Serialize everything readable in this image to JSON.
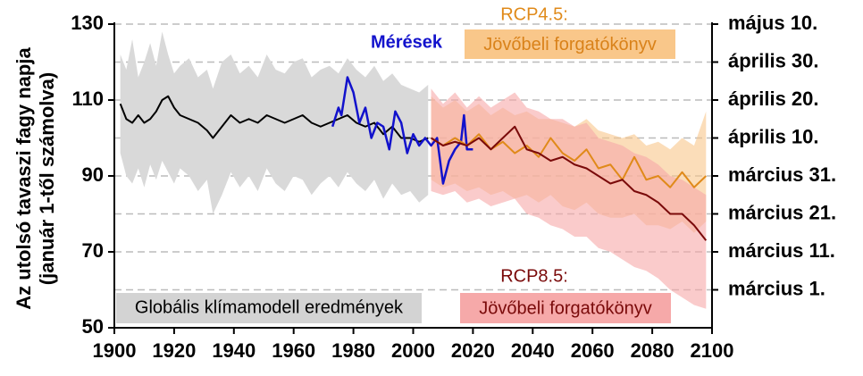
{
  "chart_data": {
    "type": "line",
    "ylabel": [
      "Az utolsó tavaszi fagy napja",
      "(január 1-től számolva)"
    ],
    "xlim": [
      1900,
      2100
    ],
    "xticks": [
      1900,
      1920,
      1940,
      1960,
      1980,
      2000,
      2020,
      2040,
      2060,
      2080,
      2100
    ],
    "ylim": [
      50,
      130
    ],
    "yticks": [
      50,
      70,
      90,
      110,
      130
    ],
    "y2lim": [
      50,
      130
    ],
    "y2ticks": [
      {
        "value": 130,
        "label": "május 10."
      },
      {
        "value": 120,
        "label": "április 30."
      },
      {
        "value": 110,
        "label": "április 20."
      },
      {
        "value": 100,
        "label": "április 10."
      },
      {
        "value": 90,
        "label": "március 31."
      },
      {
        "value": 80,
        "label": "március 21."
      },
      {
        "value": 70,
        "label": "március 11."
      },
      {
        "value": 60,
        "label": "március 1."
      }
    ],
    "grid": true,
    "series": [
      {
        "name": "Globális klímamodell eredmények",
        "color": "#000000",
        "band_color": "#d9d9d9",
        "x": [
          1902,
          1904,
          1906,
          1908,
          1910,
          1912,
          1914,
          1916,
          1918,
          1920,
          1922,
          1925,
          1928,
          1931,
          1933,
          1936,
          1939,
          1942,
          1945,
          1948,
          1951,
          1954,
          1957,
          1960,
          1963,
          1966,
          1969,
          1972,
          1975,
          1978,
          1981,
          1984,
          1987,
          1990,
          1993,
          1996,
          1999,
          2002,
          2005
        ],
        "values": [
          109,
          105,
          104,
          106,
          104,
          105,
          107,
          110,
          111,
          108,
          106,
          105,
          104,
          102,
          100,
          103,
          106,
          104,
          105,
          104,
          106,
          105,
          104,
          105,
          106,
          104,
          103,
          104,
          105,
          106,
          104,
          103,
          104,
          101,
          103,
          100,
          100,
          99,
          100
        ],
        "upper": [
          122,
          118,
          126,
          116,
          120,
          125,
          119,
          128,
          122,
          117,
          119,
          121,
          116,
          118,
          113,
          120,
          122,
          117,
          119,
          116,
          122,
          118,
          117,
          120,
          121,
          116,
          118,
          119,
          117,
          121,
          118,
          116,
          119,
          115,
          117,
          114,
          113,
          112,
          114
        ],
        "lower": [
          96,
          90,
          88,
          92,
          87,
          93,
          89,
          94,
          91,
          88,
          92,
          90,
          86,
          89,
          80,
          85,
          91,
          87,
          90,
          86,
          92,
          88,
          86,
          90,
          89,
          85,
          88,
          90,
          87,
          91,
          88,
          86,
          89,
          84,
          88,
          85,
          86,
          83,
          85
        ]
      },
      {
        "name": "Mérések",
        "color": "#1212cc",
        "x": [
          1973,
          1975,
          1976,
          1978,
          1980,
          1982,
          1984,
          1986,
          1988,
          1990,
          1992,
          1994,
          1996,
          1998,
          2000,
          2002,
          2004,
          2006,
          2008,
          2010,
          2012,
          2014,
          2016,
          2017,
          2018,
          2020
        ],
        "values": [
          103,
          108,
          106,
          116,
          112,
          104,
          108,
          100,
          104,
          103,
          97,
          107,
          104,
          96,
          101,
          98,
          100,
          98,
          100,
          88,
          94,
          97,
          99,
          106,
          97,
          97
        ]
      },
      {
        "name": "RCP4.5:",
        "subtitle": "Jövőbeli forgatókönyv",
        "color": "#e08a1a",
        "band_color": "#f9c78a",
        "x": [
          2006,
          2010,
          2014,
          2018,
          2022,
          2026,
          2030,
          2034,
          2038,
          2042,
          2046,
          2050,
          2054,
          2058,
          2062,
          2066,
          2070,
          2074,
          2078,
          2082,
          2086,
          2090,
          2094,
          2098
        ],
        "values": [
          100,
          98,
          100,
          98,
          101,
          97,
          99,
          96,
          98,
          95,
          100,
          96,
          94,
          97,
          92,
          93,
          89,
          95,
          89,
          90,
          87,
          91,
          87,
          90
        ],
        "upper": [
          111,
          108,
          110,
          107,
          109,
          106,
          108,
          106,
          107,
          105,
          105,
          104,
          103,
          105,
          102,
          101,
          100,
          101,
          98,
          99,
          97,
          100,
          98,
          107
        ],
        "lower": [
          89,
          87,
          88,
          86,
          87,
          85,
          86,
          84,
          85,
          83,
          85,
          82,
          81,
          83,
          80,
          79,
          79,
          80,
          77,
          77,
          76,
          78,
          75,
          78
        ]
      },
      {
        "name": "RCP8.5:",
        "subtitle": "Jövőbeli forgatókönyv",
        "color": "#7a0a0a",
        "band_color": "#f6a9a9",
        "x": [
          2006,
          2010,
          2014,
          2018,
          2022,
          2026,
          2030,
          2034,
          2038,
          2042,
          2046,
          2050,
          2054,
          2058,
          2062,
          2066,
          2070,
          2074,
          2078,
          2082,
          2086,
          2090,
          2094,
          2098
        ],
        "values": [
          100,
          98,
          99,
          98,
          100,
          97,
          100,
          103,
          97,
          96,
          94,
          95,
          93,
          92,
          90,
          88,
          89,
          86,
          85,
          83,
          80,
          80,
          77,
          73
        ],
        "upper": [
          113,
          109,
          112,
          108,
          111,
          108,
          110,
          112,
          108,
          107,
          105,
          105,
          103,
          104,
          100,
          99,
          98,
          96,
          95,
          93,
          90,
          89,
          87,
          85
        ],
        "lower": [
          86,
          85,
          86,
          83,
          84,
          82,
          83,
          84,
          80,
          79,
          77,
          76,
          74,
          74,
          71,
          70,
          68,
          66,
          65,
          63,
          60,
          58,
          56,
          55
        ]
      }
    ]
  }
}
